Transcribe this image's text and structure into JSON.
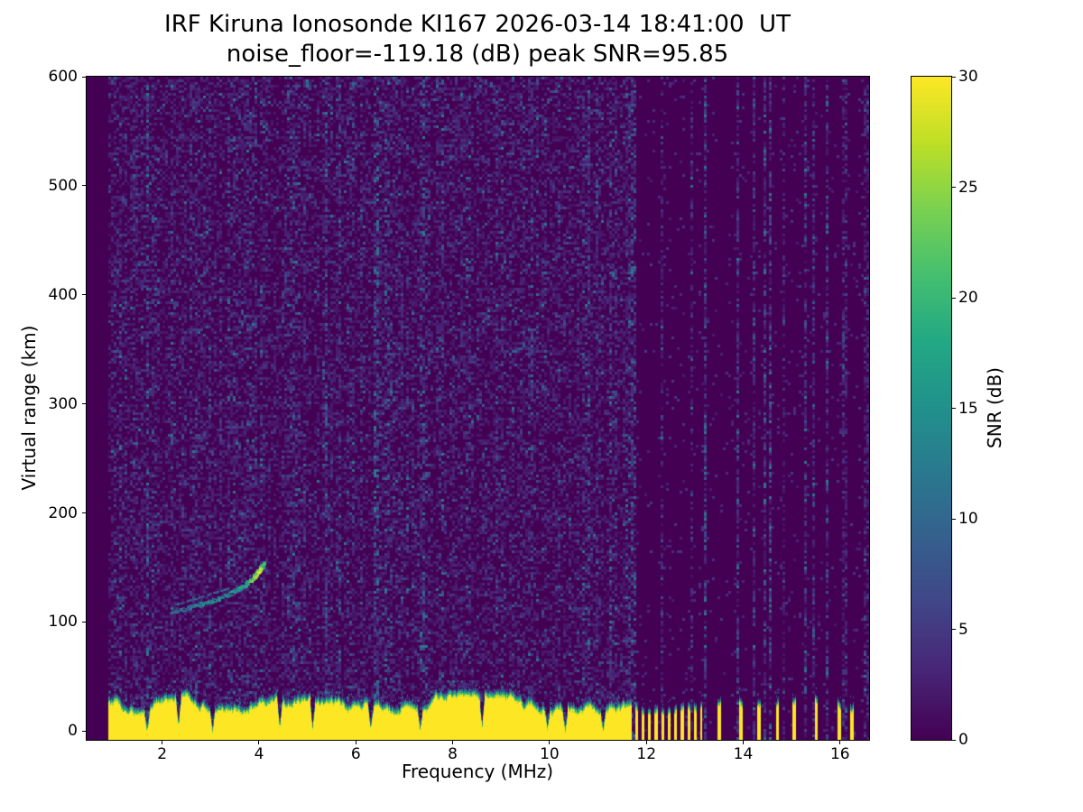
{
  "chart_data": {
    "type": "heatmap",
    "title": "IRF Kiruna Ionosonde KI167 2026-03-14 18:41:00  UT",
    "subtitle": "noise_floor=-119.18 (dB) peak SNR=95.85",
    "station": "IRF Kiruna Ionosonde KI167",
    "timestamp_ut": "2026-03-14 18:41:00",
    "noise_floor_db": -119.18,
    "peak_snr_db": 95.85,
    "xlabel": "Frequency (MHz)",
    "ylabel": "Virtual range (km)",
    "colorbar_label": "SNR (dB)",
    "xlim": [
      0.44,
      16.6
    ],
    "ylim": [
      -8,
      600
    ],
    "clim": [
      0,
      30
    ],
    "xticks": [
      2,
      4,
      6,
      8,
      10,
      12,
      14,
      16
    ],
    "yticks": [
      0,
      100,
      200,
      300,
      400,
      500,
      600
    ],
    "colorbar_ticks": [
      0,
      5,
      10,
      15,
      20,
      25,
      30
    ],
    "colormap": "viridis",
    "colormap_anchors": [
      [
        0.0,
        "#440154"
      ],
      [
        0.1,
        "#482475"
      ],
      [
        0.2,
        "#414487"
      ],
      [
        0.3,
        "#355f8d"
      ],
      [
        0.4,
        "#2a788e"
      ],
      [
        0.5,
        "#21918c"
      ],
      [
        0.6,
        "#22a884"
      ],
      [
        0.7,
        "#44bf70"
      ],
      [
        0.8,
        "#7ad151"
      ],
      [
        0.9,
        "#bddf26"
      ],
      [
        1.0,
        "#fde725"
      ]
    ],
    "features": {
      "background_snr_db": 0,
      "ground_clutter": {
        "freq_start_mhz": 0.9,
        "freq_end_mhz": 11.62,
        "top_range_km": 32,
        "snr_db": 30
      },
      "comb_stripes": {
        "freq_start_mhz": 11.62,
        "freq_end_mhz": 13.15,
        "period_mhz": 0.135,
        "duty": 0.46
      },
      "isolated_stripes_mhz": [
        13.5,
        13.95,
        14.32,
        14.7,
        15.05,
        15.5,
        15.98,
        16.23
      ],
      "clutter_notches_mhz": [
        1.68,
        2.33,
        3.03,
        4.42,
        5.1,
        6.3,
        7.32,
        8.6,
        9.95,
        10.32,
        11.1
      ],
      "echo_trace": {
        "points_mhz_km_snr": [
          [
            2.15,
            110,
            9
          ],
          [
            2.45,
            113,
            11
          ],
          [
            2.8,
            117,
            12
          ],
          [
            3.15,
            122,
            13
          ],
          [
            3.45,
            128,
            14
          ],
          [
            3.7,
            134,
            17
          ],
          [
            3.88,
            141,
            24
          ],
          [
            4.0,
            148,
            28
          ],
          [
            4.1,
            154,
            22
          ]
        ]
      }
    }
  }
}
